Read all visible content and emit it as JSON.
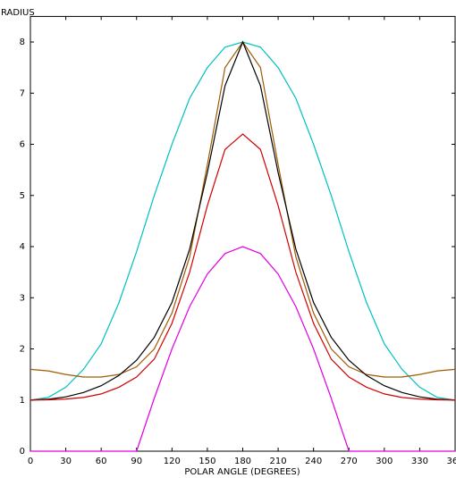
{
  "chart_data": {
    "type": "line",
    "y_label": "RADIUS",
    "x_label": "POLAR ANGLE (DEGREES)",
    "x": [
      0,
      15,
      30,
      45,
      60,
      75,
      90,
      105,
      120,
      135,
      150,
      165,
      180,
      195,
      210,
      225,
      240,
      255,
      270,
      285,
      300,
      315,
      330,
      345,
      360
    ],
    "series": [
      {
        "color": "#00c0c0",
        "values": [
          1,
          1.05,
          1.25,
          1.6,
          2.1,
          2.9,
          3.9,
          5.0,
          6.0,
          6.9,
          7.5,
          7.9,
          8,
          7.9,
          7.5,
          6.9,
          6.0,
          5.0,
          3.9,
          2.9,
          2.1,
          1.6,
          1.25,
          1.05,
          1
        ]
      },
      {
        "color": "#a05a00",
        "values": [
          1.6,
          1.57,
          1.5,
          1.45,
          1.45,
          1.5,
          1.65,
          2.0,
          2.7,
          3.8,
          5.6,
          7.5,
          8,
          7.5,
          5.6,
          3.8,
          2.7,
          2.0,
          1.65,
          1.5,
          1.45,
          1.45,
          1.5,
          1.57,
          1.6
        ]
      },
      {
        "color": "#000000",
        "values": [
          1,
          1.015,
          1.062,
          1.147,
          1.28,
          1.48,
          1.778,
          2.226,
          2.909,
          3.951,
          5.446,
          7.146,
          8,
          7.146,
          5.446,
          3.951,
          2.909,
          2.226,
          1.778,
          1.48,
          1.28,
          1.147,
          1.062,
          1.015,
          1
        ]
      },
      {
        "color": "#d00000",
        "values": [
          1,
          1.005,
          1.02,
          1.05,
          1.12,
          1.25,
          1.45,
          1.8,
          2.5,
          3.5,
          4.8,
          5.9,
          6.2,
          5.9,
          4.8,
          3.5,
          2.5,
          1.8,
          1.45,
          1.25,
          1.12,
          1.05,
          1.02,
          1.005,
          1
        ]
      },
      {
        "color": "#e000e0",
        "values": [
          0,
          0,
          0,
          0,
          0,
          0,
          0,
          1.035,
          2,
          2.828,
          3.464,
          3.864,
          4,
          3.864,
          3.464,
          2.828,
          2,
          1.035,
          0,
          0,
          0,
          0,
          0,
          0,
          0
        ]
      }
    ],
    "xlim": [
      0,
      360
    ],
    "xticks": [
      0,
      30,
      60,
      90,
      120,
      150,
      180,
      210,
      240,
      270,
      300,
      330,
      360
    ],
    "ylim": [
      0,
      8.5
    ],
    "yticks": [
      0,
      1,
      2,
      3,
      4,
      5,
      6,
      7,
      8
    ]
  }
}
